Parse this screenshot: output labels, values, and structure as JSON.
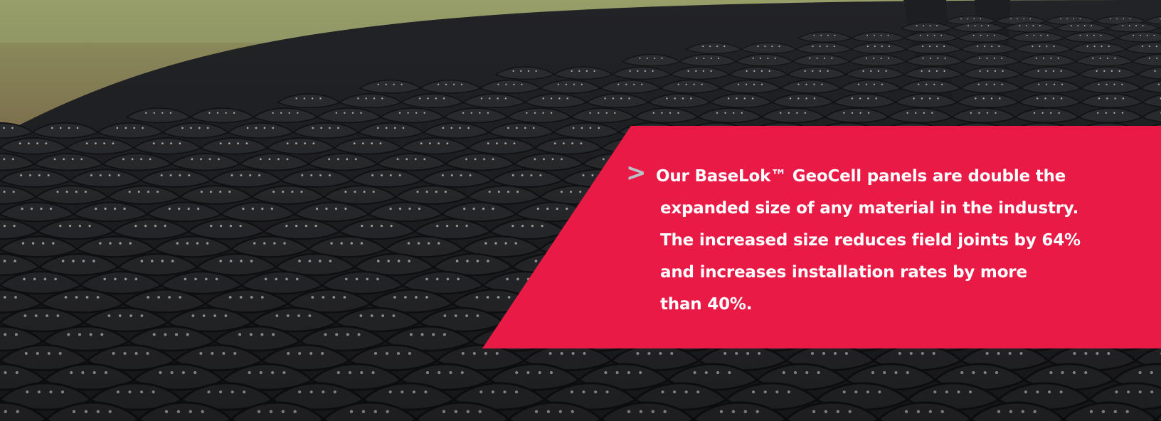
{
  "hero": {
    "photo_subject": "black perforated geocell panels expanded on soil and grass",
    "accent_color": "#ea1a46",
    "chevron_color": "#b9c1c8",
    "caption": {
      "chevron_icon": ">",
      "lines": [
        "Our BaseLok™ GeoCell panels are double the",
        "expanded size of any material in the industry.",
        "The increased size reduces field joints by 64%",
        "and increases installation rates by more",
        "than 40%."
      ]
    }
  }
}
